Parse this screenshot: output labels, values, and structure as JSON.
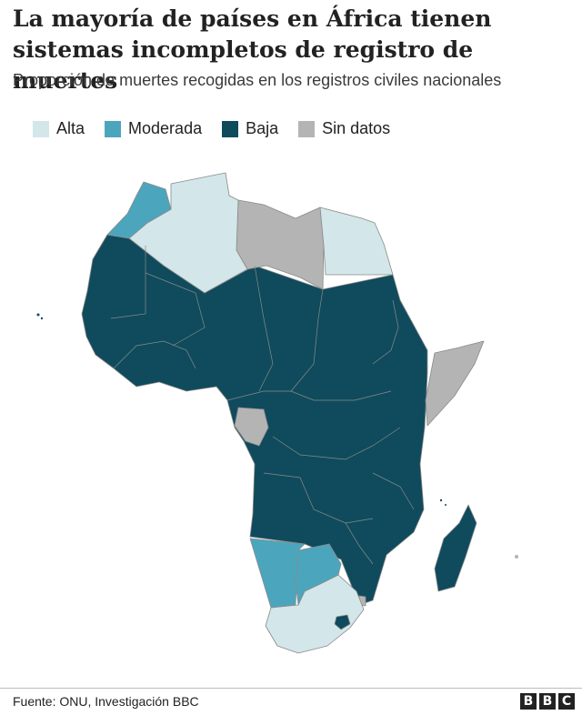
{
  "header": {
    "title": "La mayoría de países en África tienen sistemas incompletos de registro de muertes",
    "subtitle": "Proporción de muertes recogidas en los registros civiles nacionales"
  },
  "legend": [
    {
      "label": "Alta",
      "color": "#d3e6ea"
    },
    {
      "label": "Moderada",
      "color": "#4ba6bd"
    },
    {
      "label": "Baja",
      "color": "#0f4b5c"
    },
    {
      "label": "Sin datos",
      "color": "#b4b4b4"
    }
  ],
  "map": {
    "region": "Africa",
    "categories": {
      "Alta": [
        "Algeria",
        "Egypt",
        "South Africa"
      ],
      "Moderada": [
        "Morocco",
        "Namibia",
        "Botswana"
      ],
      "Baja": [
        "Mauritania",
        "Mali",
        "Niger",
        "Chad",
        "Sudan",
        "Nigeria",
        "Ethiopia",
        "DR Congo",
        "Angola",
        "Zambia",
        "Tanzania",
        "Kenya",
        "Mozambique",
        "Madagascar",
        "Zimbabwe",
        "Lesotho",
        "Tunisia"
      ],
      "Sin datos": [
        "Libya",
        "Somalia",
        "Gabon",
        "Equatorial Guinea",
        "Eswatini"
      ]
    }
  },
  "footer": {
    "source": "Fuente: ONU, Investigación BBC",
    "logo": [
      "B",
      "B",
      "C"
    ]
  }
}
